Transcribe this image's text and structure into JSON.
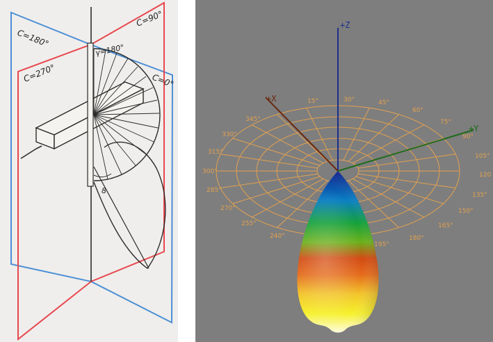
{
  "left_diagram": {
    "plane_labels": {
      "c180": "C=180°",
      "c90": "C=90°",
      "c270": "C=270°",
      "c0": "C=0°"
    },
    "gamma_label": "γ=180°",
    "angle_label": "8",
    "colors": {
      "plane_a": "#e8474e",
      "plane_b": "#4c8fd6",
      "ink": "#2b2b2b"
    }
  },
  "right_diagram": {
    "axes": {
      "z": {
        "label": "+Z",
        "color": "#1b2f8f"
      },
      "x": {
        "label": "+X",
        "color": "#6b2a12"
      },
      "y": {
        "label": "+Y",
        "color": "#1e6b1a"
      }
    },
    "polar_grid_color": "#e3a14f",
    "degree_labels": [
      "15°",
      "30°",
      "45°",
      "60°",
      "75°",
      "90°",
      "105°",
      "120",
      "135°",
      "150°",
      "165°",
      "180°",
      "195°",
      "240°",
      "255°",
      "270°",
      "285°",
      "300°",
      "315°",
      "330°",
      "345°"
    ],
    "lobe_gradient": [
      "#0b1d8c",
      "#0a7ec4",
      "#13a03a",
      "#6ab01a",
      "#d24a12",
      "#e46a1a",
      "#f2c42a",
      "#f6f02a",
      "#fffde0"
    ]
  }
}
